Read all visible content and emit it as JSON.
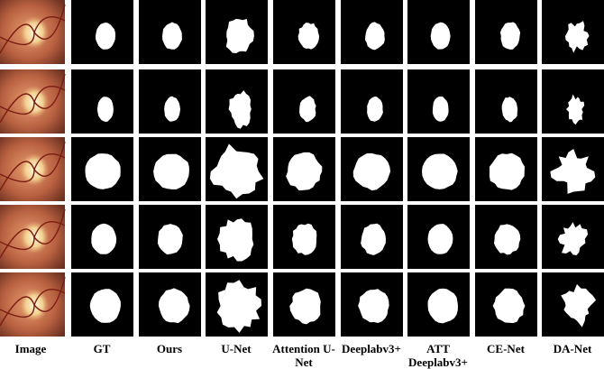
{
  "column_labels": [
    "Image",
    "GT",
    "Ours",
    "U-Net",
    "Attention U-Net",
    "Deeplabv3+",
    "ATT Deeplabv3+",
    "CE-Net",
    "DA-Net"
  ]
}
